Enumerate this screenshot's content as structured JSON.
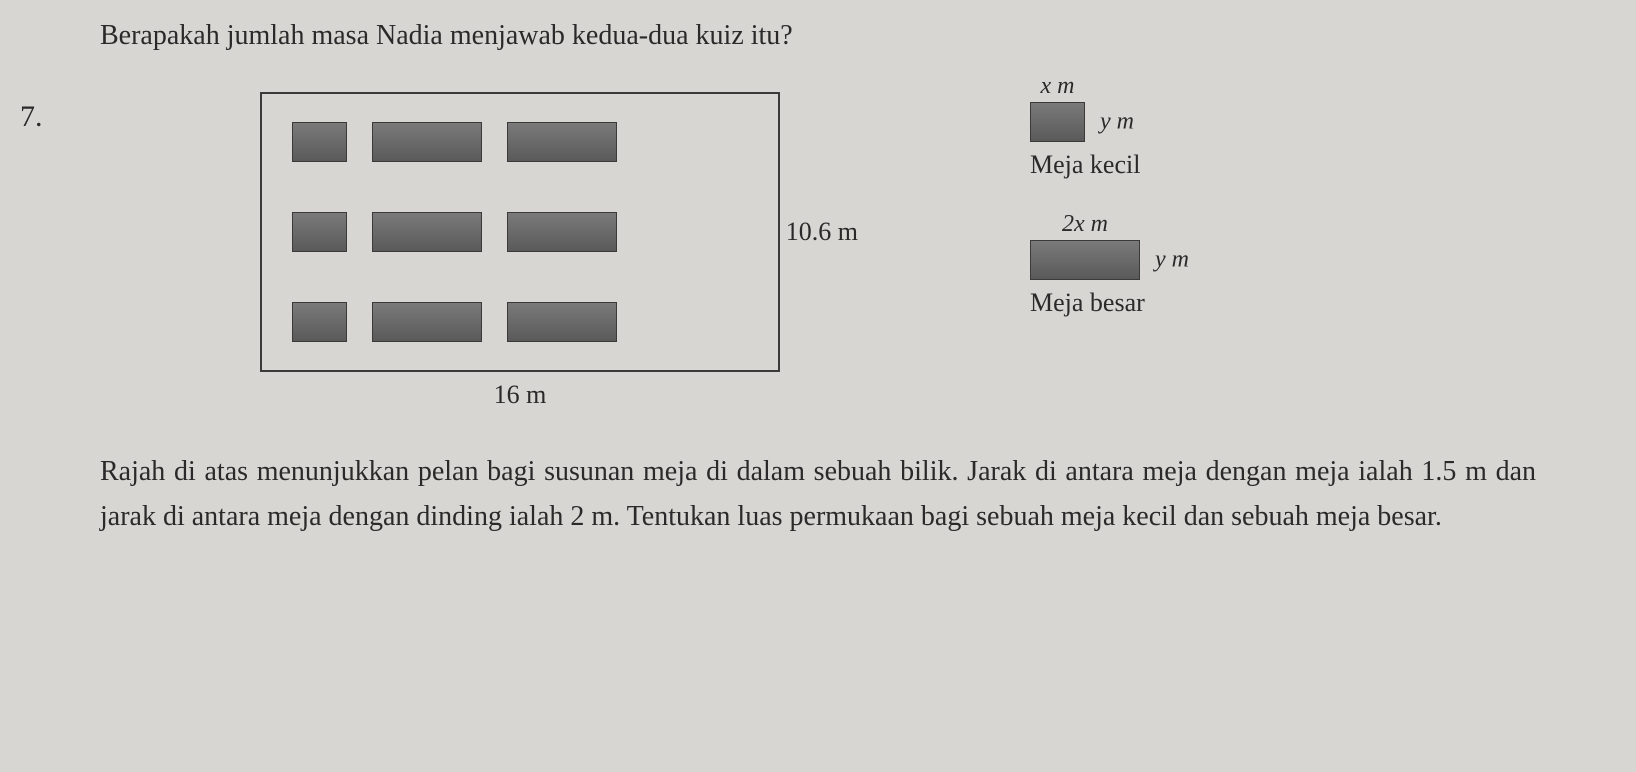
{
  "top_question": "Berapakah jumlah masa Nadia menjawab kedua-dua kuiz itu?",
  "question_number": "7.",
  "diagram": {
    "room_height_label": "10.6 m",
    "room_width_label": "16 m",
    "room_height_value": 10.6,
    "room_width_value": 16,
    "rows": 3,
    "tables_per_row": {
      "small": 1,
      "big": 2
    },
    "table_colors": {
      "fill_top": "#7a7a7a",
      "fill_bottom": "#5a5a5a",
      "border": "#3a3a3a"
    },
    "room_border_color": "#3a3a3a"
  },
  "legend": {
    "small": {
      "width_label": "x m",
      "height_label": "y m",
      "caption": "Meja kecil"
    },
    "big": {
      "width_label": "2x m",
      "height_label": "y m",
      "caption": "Meja besar"
    }
  },
  "description": "Rajah di atas menunjukkan pelan bagi susunan meja di dalam sebuah bilik. Jarak di antara meja dengan meja ialah 1.5 m dan jarak di antara meja dengan dinding ialah 2 m. Tentukan luas permukaan bagi sebuah meja kecil dan sebuah meja besar.",
  "colors": {
    "background": "#d8d6d2",
    "text": "#2a2a2a"
  },
  "typography": {
    "body_fontsize": 28,
    "label_fontsize": 26,
    "font_family": "Georgia, Times New Roman, serif"
  }
}
